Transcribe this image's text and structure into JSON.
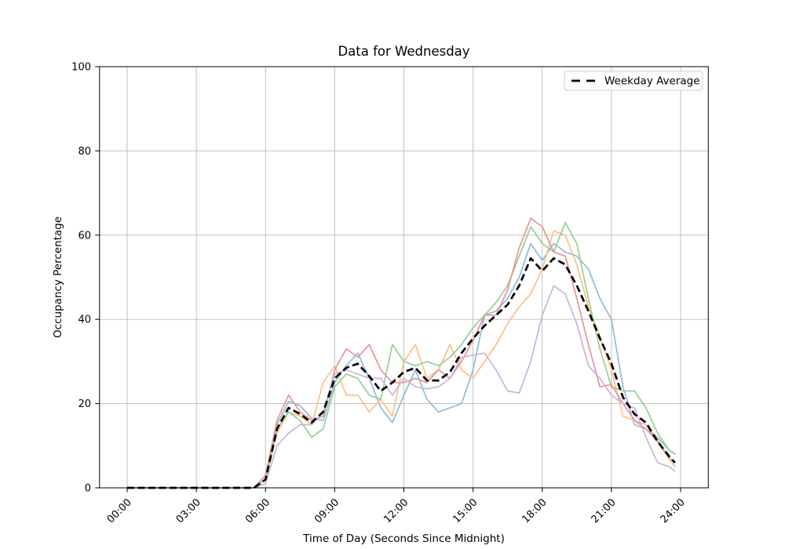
{
  "figure": {
    "title": "Data for Wednesday",
    "x_axis_label": "Time of Day (Seconds Since Midnight)",
    "y_axis_label": "Occupancy Percentage",
    "legend_label": "Weekday Average"
  },
  "colors": {
    "background": "#ffffff",
    "grid": "#bbbbbb",
    "spine": "#000000",
    "legend_border": "#cccccc",
    "average_line": "#000000"
  },
  "chart_data": {
    "type": "line",
    "title": "Data for Wednesday",
    "xlabel": "Time of Day (Seconds Since Midnight)",
    "ylabel": "Occupancy Percentage",
    "grid": true,
    "legend_position": "upper right",
    "legend_entries": [
      "Weekday Average"
    ],
    "ylim": [
      0,
      100
    ],
    "xlim_hours": [
      -1.2,
      25.2
    ],
    "y_ticks": [
      0,
      20,
      40,
      60,
      80,
      100
    ],
    "x_tick_hours": [
      0,
      3,
      6,
      9,
      12,
      15,
      18,
      21,
      24
    ],
    "x_tick_labels": [
      "00:00",
      "03:00",
      "06:00",
      "09:00",
      "12:00",
      "15:00",
      "18:00",
      "21:00",
      "24:00"
    ],
    "x_hours": [
      0,
      0.5,
      1,
      1.5,
      2,
      2.5,
      3,
      3.5,
      4,
      4.5,
      5,
      5.5,
      6,
      6.5,
      7,
      7.5,
      8,
      8.5,
      9,
      9.5,
      10,
      10.5,
      11,
      11.5,
      12,
      12.5,
      13,
      13.5,
      14,
      14.5,
      15,
      15.5,
      16,
      16.5,
      17,
      17.5,
      18,
      18.5,
      19,
      19.5,
      20,
      20.5,
      21,
      21.5,
      22,
      22.5,
      23,
      23.5,
      23.75
    ],
    "series": [
      {
        "name": "weekday-line-1",
        "color": "#8FBBDA",
        "style": "solid",
        "values": [
          0,
          0,
          0,
          0,
          0,
          0,
          0,
          0,
          0,
          0,
          0,
          0,
          3,
          15,
          20.5,
          19.5,
          16.5,
          16,
          25,
          29,
          32,
          26,
          19,
          15.5,
          22,
          28,
          21,
          18,
          19,
          20,
          28,
          41,
          42,
          45,
          50,
          58,
          54,
          58,
          56,
          55,
          52,
          45,
          40,
          24,
          15,
          14,
          12,
          9,
          8
        ]
      },
      {
        "name": "weekday-line-2",
        "color": "#FFBF86",
        "style": "solid",
        "values": [
          0,
          0,
          0,
          0,
          0,
          0,
          0,
          0,
          0,
          0,
          0,
          0,
          2,
          13,
          18,
          17,
          15,
          25,
          29,
          22,
          22,
          18,
          21,
          17,
          30,
          34,
          26,
          28,
          34,
          28,
          26,
          30,
          34,
          39,
          43,
          46,
          52,
          61,
          60,
          53,
          43,
          36,
          28,
          17,
          16,
          15,
          11.5,
          7,
          5
        ]
      },
      {
        "name": "weekday-line-3",
        "color": "#95CF95",
        "style": "solid",
        "values": [
          0,
          0,
          0,
          0,
          0,
          0,
          0,
          0,
          0,
          0,
          0,
          0,
          2,
          14,
          18,
          16,
          12,
          14,
          24,
          27,
          26,
          22,
          21,
          34,
          30,
          29,
          30,
          29,
          31,
          34,
          38,
          41,
          44,
          48,
          55,
          62,
          58,
          56,
          63,
          58,
          45,
          33,
          24,
          23,
          23,
          19,
          13,
          9,
          8
        ]
      },
      {
        "name": "weekday-line-4",
        "color": "#EA9393",
        "style": "solid",
        "values": [
          0,
          0,
          0,
          0,
          0,
          0,
          0,
          0,
          0,
          0,
          0,
          0,
          3,
          16,
          22,
          18,
          16,
          17,
          28,
          33,
          31,
          34,
          28,
          25,
          25,
          26,
          25,
          28,
          26,
          30,
          35,
          41,
          41,
          47,
          57,
          64,
          62,
          56,
          55,
          45,
          34,
          24,
          24.5,
          20,
          16,
          14,
          11,
          7,
          6
        ]
      },
      {
        "name": "weekday-line-5",
        "color": "#C9B3DE",
        "style": "solid",
        "values": [
          0,
          0,
          0,
          0,
          0,
          0,
          0,
          0,
          0,
          0,
          0,
          0,
          1,
          10,
          13,
          15,
          15,
          18,
          27,
          28,
          27,
          26,
          26,
          22,
          26,
          24,
          23.5,
          24,
          26,
          31,
          31.5,
          32,
          28,
          23,
          22.5,
          30,
          41,
          48,
          46,
          39,
          29,
          26,
          22,
          20,
          19,
          12,
          6,
          5,
          4
        ]
      }
    ],
    "average": {
      "name": "Weekday Average",
      "color": "#000000",
      "style": "dashed",
      "values": [
        0,
        0,
        0,
        0,
        0,
        0,
        0,
        0,
        0,
        0,
        0,
        0,
        2,
        14,
        19,
        17.5,
        15.5,
        18,
        26,
        28.5,
        29.5,
        26.5,
        23,
        25,
        27.5,
        28.5,
        25.5,
        25.5,
        27.5,
        32,
        35.5,
        38.5,
        41,
        43.5,
        48,
        54.5,
        51.5,
        54.5,
        53,
        48,
        42,
        35.5,
        29.5,
        21.5,
        17.5,
        15.5,
        11,
        7.5,
        6
      ]
    }
  }
}
